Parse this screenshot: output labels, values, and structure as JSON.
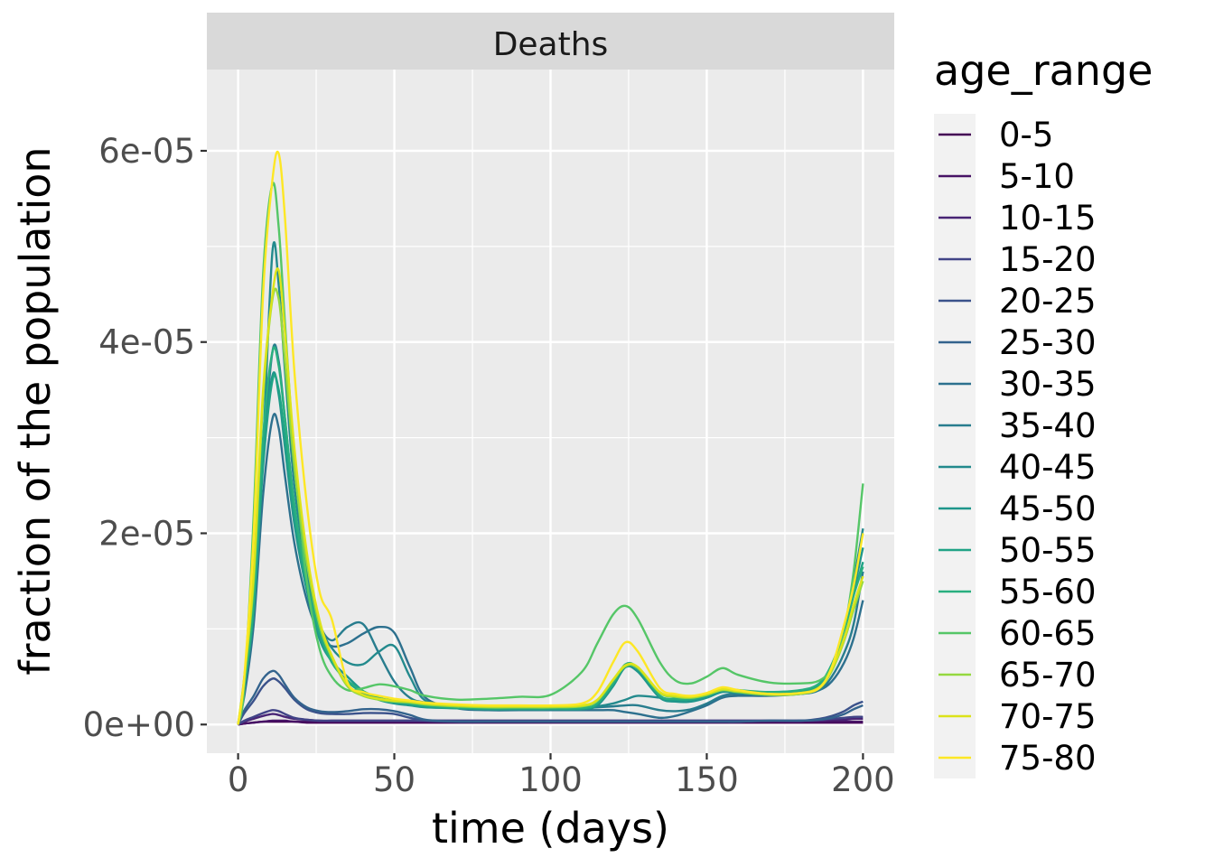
{
  "chart_data": {
    "type": "line",
    "facet_label": "Deaths",
    "xlabel": "time (days)",
    "ylabel": "fraction of the population",
    "xlim": [
      -10,
      210
    ],
    "ylim": [
      -3e-06,
      6.85e-05
    ],
    "x_ticks": [
      0,
      50,
      100,
      150,
      200
    ],
    "x_tick_labels": [
      "0",
      "50",
      "100",
      "150",
      "200"
    ],
    "y_ticks": [
      0,
      2e-05,
      4e-05,
      6e-05
    ],
    "y_tick_labels": [
      "0e+00",
      "2e-05",
      "4e-05",
      "6e-05"
    ],
    "grid": true,
    "legend_title": "age_range",
    "legend_position": "right",
    "x": [
      0,
      2,
      5,
      8,
      11,
      13,
      15,
      18,
      22,
      26,
      30,
      35,
      40,
      45,
      50,
      55,
      60,
      70,
      80,
      90,
      100,
      110,
      115,
      120,
      124,
      128,
      135,
      140,
      145,
      150,
      155,
      160,
      170,
      180,
      186,
      190,
      194,
      197,
      200
    ],
    "series": [
      {
        "name": "0-5",
        "color": "#440154",
        "values": [
          0,
          1e-07,
          2e-07,
          3e-07,
          3e-07,
          3e-07,
          3e-07,
          3e-07,
          2e-07,
          2e-07,
          2e-07,
          2e-07,
          2e-07,
          2e-07,
          2e-07,
          2e-07,
          2e-07,
          2e-07,
          2e-07,
          2e-07,
          2e-07,
          2e-07,
          2e-07,
          2e-07,
          2e-07,
          2e-07,
          2e-07,
          2e-07,
          2e-07,
          2e-07,
          2e-07,
          2e-07,
          2e-07,
          2e-07,
          2e-07,
          2e-07,
          2e-07,
          2e-07,
          2e-07
        ]
      },
      {
        "name": "5-10",
        "color": "#471365",
        "values": [
          0,
          1e-07,
          2e-07,
          3e-07,
          4e-07,
          4e-07,
          4e-07,
          3e-07,
          3e-07,
          3e-07,
          3e-07,
          3e-07,
          3e-07,
          3e-07,
          3e-07,
          3e-07,
          3e-07,
          3e-07,
          3e-07,
          3e-07,
          3e-07,
          3e-07,
          3e-07,
          3e-07,
          3e-07,
          3e-07,
          3e-07,
          3e-07,
          3e-07,
          3e-07,
          3e-07,
          3e-07,
          3e-07,
          3e-07,
          3e-07,
          3e-07,
          3e-07,
          3e-07,
          3e-07
        ]
      },
      {
        "name": "10-15",
        "color": "#482475",
        "values": [
          0,
          3e-07,
          6e-07,
          9e-07,
          1.1e-06,
          1e-06,
          8e-07,
          6e-07,
          5e-07,
          4e-07,
          4e-07,
          4e-07,
          4e-07,
          4e-07,
          4e-07,
          4e-07,
          4e-07,
          4e-07,
          4e-07,
          4e-07,
          4e-07,
          4e-07,
          4e-07,
          4e-07,
          4e-07,
          4e-07,
          4e-07,
          4e-07,
          4e-07,
          4e-07,
          4e-07,
          4e-07,
          4e-07,
          4e-07,
          4e-07,
          5e-07,
          5e-07,
          6e-07,
          6e-07
        ]
      },
      {
        "name": "15-20",
        "color": "#414487",
        "values": [
          0,
          4e-07,
          8e-07,
          1.2e-06,
          1.5e-06,
          1.4e-06,
          1.1e-06,
          7e-07,
          5e-07,
          4e-07,
          4e-07,
          4e-07,
          4e-07,
          4e-07,
          4e-07,
          4e-07,
          4e-07,
          4e-07,
          4e-07,
          4e-07,
          4e-07,
          4e-07,
          4e-07,
          4e-07,
          4e-07,
          4e-07,
          4e-07,
          4e-07,
          4e-07,
          4e-07,
          4e-07,
          4e-07,
          4e-07,
          4e-07,
          5e-07,
          6e-07,
          7e-07,
          8e-07,
          8e-07
        ]
      },
      {
        "name": "20-25",
        "color": "#3B528B",
        "values": [
          0,
          1.2e-06,
          2.5e-06,
          4e-06,
          4.8e-06,
          4.5e-06,
          3.8e-06,
          2.6e-06,
          1.6e-06,
          1.2e-06,
          1.1e-06,
          1.1e-06,
          1.2e-06,
          1.2e-06,
          1.1e-06,
          7e-07,
          4e-07,
          3e-07,
          3e-07,
          3e-07,
          3e-07,
          3e-07,
          3e-07,
          3e-07,
          3e-07,
          3e-07,
          3e-07,
          3e-07,
          3e-07,
          3e-07,
          3e-07,
          3e-07,
          4e-07,
          4e-07,
          6e-07,
          9e-07,
          1.4e-06,
          2e-06,
          2.4e-06
        ]
      },
      {
        "name": "25-30",
        "color": "#33638D",
        "values": [
          0,
          1.5e-06,
          3e-06,
          4.8e-06,
          5.6e-06,
          5.2e-06,
          4.2e-06,
          2.8e-06,
          1.8e-06,
          1.4e-06,
          1.3e-06,
          1.4e-06,
          1.6e-06,
          1.6e-06,
          1.4e-06,
          1e-06,
          5e-07,
          3e-07,
          3e-07,
          3e-07,
          3e-07,
          3e-07,
          3e-07,
          3e-07,
          3e-07,
          3e-07,
          3e-07,
          3e-07,
          3e-07,
          3e-07,
          3e-07,
          3e-07,
          4e-07,
          4e-07,
          5e-07,
          7e-07,
          1.1e-06,
          1.6e-06,
          2e-06
        ]
      },
      {
        "name": "30-35",
        "color": "#2D708E",
        "values": [
          0,
          3e-06,
          1.05e-05,
          2.4e-05,
          3.2e-05,
          3.1e-05,
          2.6e-05,
          1.9e-05,
          1.3e-05,
          9.5e-06,
          8.2e-06,
          8.5e-06,
          9.5e-06,
          1.02e-05,
          9.6e-06,
          6e-06,
          2.8e-06,
          1.7e-06,
          1.5e-06,
          1.5e-06,
          1.5e-06,
          1.5e-06,
          1.5e-06,
          1.5e-06,
          1.3e-06,
          1.1e-06,
          7e-07,
          9e-07,
          1.4e-06,
          2e-06,
          2.8e-06,
          3e-06,
          3e-06,
          3.2e-06,
          3.6e-06,
          4.5e-06,
          6.5e-06,
          9e-06,
          1.3e-05
        ]
      },
      {
        "name": "35-40",
        "color": "#287D8E",
        "values": [
          0,
          4e-06,
          1.25e-05,
          2.8e-05,
          3.9e-05,
          3.8e-05,
          3.2e-05,
          2.3e-05,
          1.5e-05,
          1.05e-05,
          8.8e-06,
          1.02e-05,
          1.05e-05,
          7.5e-06,
          4.5e-06,
          2.8e-06,
          2.3e-06,
          1.9e-06,
          1.7e-06,
          1.7e-06,
          1.7e-06,
          1.7e-06,
          1.8e-06,
          1.9e-06,
          2e-06,
          2e-06,
          1.5e-06,
          1.4e-06,
          1.6e-06,
          2.2e-06,
          3e-06,
          3.2e-06,
          3.1e-06,
          3.2e-06,
          3.6e-06,
          5e-06,
          7.5e-06,
          1.05e-05,
          1.6e-05
        ]
      },
      {
        "name": "40-45",
        "color": "#238A8D",
        "values": [
          0,
          4e-06,
          1.25e-05,
          2.9e-05,
          4.95e-05,
          4.6e-05,
          3.7e-05,
          2.5e-05,
          1.6e-05,
          1.05e-05,
          8e-06,
          6.5e-06,
          6.3e-06,
          7.6e-06,
          8.2e-06,
          5e-06,
          2.5e-06,
          2e-06,
          1.8e-06,
          1.8e-06,
          1.8e-06,
          1.8e-06,
          1.9e-06,
          2.2e-06,
          2.6e-06,
          3e-06,
          2.8e-06,
          2.6e-06,
          2.8e-06,
          3.2e-06,
          3.6e-06,
          3.5e-06,
          3.3e-06,
          3.5e-06,
          4e-06,
          6e-06,
          1e-05,
          1.5e-05,
          2.05e-05
        ]
      },
      {
        "name": "45-50",
        "color": "#1F968B",
        "values": [
          0,
          4e-06,
          1.2e-05,
          2.8e-05,
          3.65e-05,
          3.45e-05,
          2.9e-05,
          2.1e-05,
          1.4e-05,
          9e-06,
          6.6e-06,
          5e-06,
          3.5e-06,
          2.6e-06,
          2.2e-06,
          2e-06,
          1.8e-06,
          1.7e-06,
          1.6e-06,
          1.6e-06,
          1.6e-06,
          1.6e-06,
          2e-06,
          4e-06,
          6e-06,
          5.5e-06,
          2.8e-06,
          2.4e-06,
          2.4e-06,
          2.8e-06,
          3.4e-06,
          3.3e-06,
          3.1e-06,
          3.3e-06,
          4e-06,
          6e-06,
          1e-05,
          1.4e-05,
          1.85e-05
        ]
      },
      {
        "name": "50-55",
        "color": "#20A386",
        "values": [
          0,
          4e-06,
          1.2e-05,
          2.7e-05,
          3.6e-05,
          3.5e-05,
          3e-05,
          2.2e-05,
          1.45e-05,
          9.5e-06,
          6.5e-06,
          4.5e-06,
          3.3e-06,
          2.6e-06,
          2.3e-06,
          2.1e-06,
          1.9e-06,
          1.7e-06,
          1.6e-06,
          1.6e-06,
          1.6e-06,
          1.7e-06,
          2.2e-06,
          4.2e-06,
          6.2e-06,
          5.8e-06,
          3e-06,
          2.6e-06,
          2.6e-06,
          3e-06,
          3.6e-06,
          3.5e-06,
          3.3e-06,
          3.5e-06,
          4.2e-06,
          6.2e-06,
          9.8e-06,
          1.35e-05,
          1.7e-05
        ]
      },
      {
        "name": "55-60",
        "color": "#29AF7F",
        "values": [
          0,
          4e-06,
          1.3e-05,
          3e-05,
          3.9e-05,
          3.75e-05,
          3.2e-05,
          2.3e-05,
          1.5e-05,
          1e-05,
          6.5e-06,
          4.6e-06,
          3.5e-06,
          2.8e-06,
          2.5e-06,
          2.2e-06,
          2e-06,
          1.8e-06,
          1.7e-06,
          1.7e-06,
          1.7e-06,
          1.7e-06,
          2.2e-06,
          4.3e-06,
          6.3e-06,
          5.9e-06,
          3e-06,
          2.7e-06,
          2.7e-06,
          3.1e-06,
          3.7e-06,
          3.6e-06,
          3.4e-06,
          3.6e-06,
          4.3e-06,
          6.3e-06,
          9.8e-06,
          1.35e-05,
          1.65e-05
        ]
      },
      {
        "name": "60-65",
        "color": "#55C667",
        "values": [
          0,
          4e-06,
          2.2e-05,
          4.7e-05,
          5.65e-05,
          5.2e-05,
          4.2e-05,
          2.8e-05,
          1.5e-05,
          8e-06,
          5e-06,
          3.6e-06,
          3.8e-06,
          4.2e-06,
          4e-06,
          3.6e-06,
          3e-06,
          2.6e-06,
          2.7e-06,
          2.9e-06,
          3.1e-06,
          5.5e-06,
          8.5e-06,
          1.15e-05,
          1.24e-05,
          1.1e-05,
          6.5e-06,
          4.6e-06,
          4.3e-06,
          5e-06,
          5.9e-06,
          5.2e-06,
          4.4e-06,
          4.3e-06,
          4.6e-06,
          6e-06,
          1e-05,
          1.6e-05,
          2.52e-05
        ]
      },
      {
        "name": "65-70",
        "color": "#95D840",
        "values": [
          0,
          5e-06,
          1.5e-05,
          3.4e-05,
          4.45e-05,
          4.45e-05,
          3.8e-05,
          2.7e-05,
          1.7e-05,
          1.05e-05,
          7e-06,
          4e-06,
          3e-06,
          2.6e-06,
          2.4e-06,
          2.3e-06,
          2.1e-06,
          1.9e-06,
          1.8e-06,
          1.8e-06,
          1.8e-06,
          1.9e-06,
          2.5e-06,
          4.6e-06,
          6.1e-06,
          5.9e-06,
          3.3e-06,
          2.9e-06,
          2.8e-06,
          3.1e-06,
          3.6e-06,
          3.4e-06,
          3.1e-06,
          3.2e-06,
          3.8e-06,
          5.6e-06,
          8.8e-06,
          1.2e-05,
          1.5e-05
        ]
      },
      {
        "name": "70-75",
        "color": "#DCE319",
        "values": [
          0,
          5e-06,
          1.6e-05,
          3.5e-05,
          4.5e-05,
          4.75e-05,
          4.1e-05,
          2.9e-05,
          1.8e-05,
          1.1e-05,
          7.2e-06,
          4.2e-06,
          3.1e-06,
          2.7e-06,
          2.5e-06,
          2.4e-06,
          2.2e-06,
          2e-06,
          1.9e-06,
          1.9e-06,
          1.9e-06,
          2e-06,
          2.6e-06,
          4.7e-06,
          6.2e-06,
          6e-06,
          3.4e-06,
          3e-06,
          2.9e-06,
          3.2e-06,
          3.7e-06,
          3.5e-06,
          3.2e-06,
          3.3e-06,
          3.9e-06,
          5.8e-06,
          9e-06,
          1.25e-05,
          1.55e-05
        ]
      },
      {
        "name": "75-80",
        "color": "#FDE725",
        "values": [
          0,
          5e-06,
          2e-05,
          4.5e-05,
          5.7e-05,
          5.97e-05,
          5.3e-05,
          3.7e-05,
          2.3e-05,
          1.4e-05,
          1.1e-05,
          4.4e-06,
          3.4e-06,
          3e-06,
          2.7e-06,
          2.5e-06,
          2.3e-06,
          2.1e-06,
          2e-06,
          2e-06,
          2e-06,
          2.2e-06,
          3.4e-06,
          6.5e-06,
          8.6e-06,
          7.6e-06,
          3.8e-06,
          3.2e-06,
          3e-06,
          3.3e-06,
          3.9e-06,
          3.6e-06,
          3.2e-06,
          3.3e-06,
          3.8e-06,
          6e-06,
          1.05e-05,
          1.45e-05,
          2e-05
        ]
      }
    ]
  }
}
